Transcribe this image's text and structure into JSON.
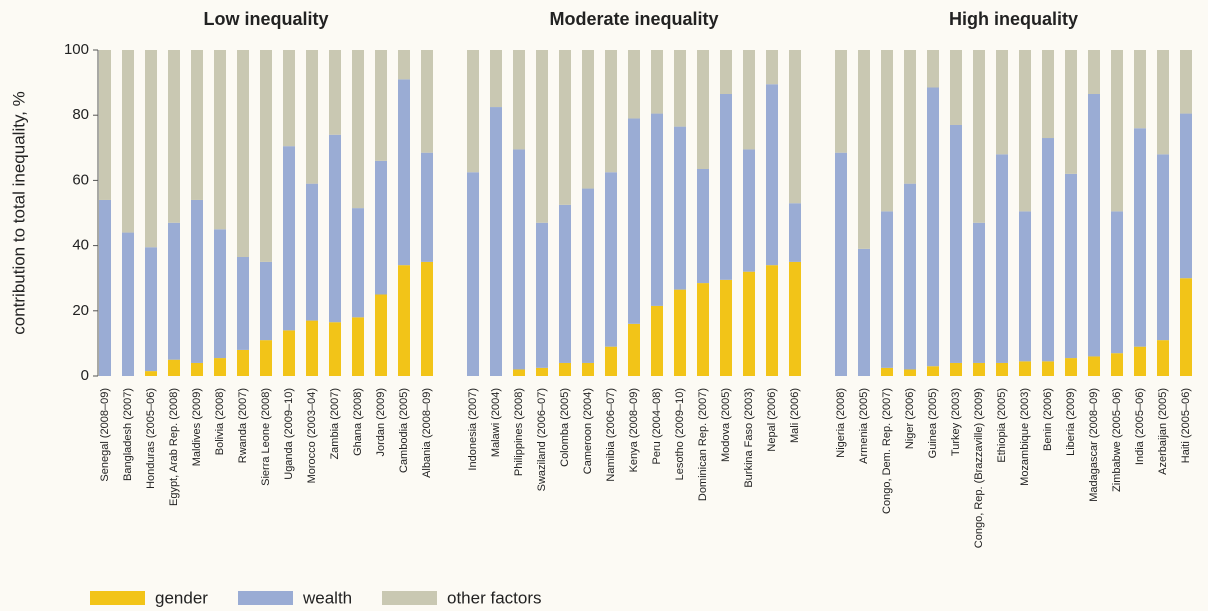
{
  "chart_data": {
    "type": "stacked_bar",
    "ylabel": "contribution to total inequality, %",
    "ylim": [
      0,
      100
    ],
    "yticks": [
      0,
      20,
      40,
      60,
      80,
      100
    ],
    "legend": [
      {
        "name": "gender",
        "color": "#f2c418"
      },
      {
        "name": "wealth",
        "color": "#9aacd4"
      },
      {
        "name": "other factors",
        "color": "#c9c8b2"
      }
    ],
    "groups": [
      {
        "title": "Low inequality",
        "categories": [
          "Senegal (2008–09)",
          "Bangladesh (2007)",
          "Honduras (2005–06)",
          "Egypt, Arab Rep. (2008)",
          "Maldives (2009)",
          "Bolivia (2008)",
          "Rwanda (2007)",
          "Sierra Leone (2008)",
          "Uganda (2009–10)",
          "Morocco (2003–04)",
          "Zambia (2007)",
          "Ghana (2008)",
          "Jordan (2009)",
          "Cambodia (2005)",
          "Albania (2008–09)"
        ],
        "series": [
          {
            "values": [
              0,
              0,
              1.5,
              5,
              4,
              5.5,
              8,
              11,
              14,
              17,
              16.5,
              18,
              25,
              34,
              35
            ]
          },
          {
            "values": [
              54,
              44,
              38,
              42,
              50,
              39.5,
              28.5,
              24,
              56.5,
              42,
              57.5,
              33.5,
              41,
              57,
              33.5
            ]
          },
          {
            "values": [
              46,
              56,
              60.5,
              53,
              46,
              55,
              63.5,
              65,
              29.5,
              41,
              26,
              48.5,
              34,
              9,
              31.5
            ]
          }
        ]
      },
      {
        "title": "Moderate inequality",
        "categories": [
          "Indonesia (2007)",
          "Malawi (2004)",
          "Philippines (2008)",
          "Swaziland (2006–07)",
          "Colomba (2005)",
          "Cameroon (2004)",
          "Namibia (2006–07)",
          "Kenya (2008–09)",
          "Peru (2004–08)",
          "Lesotho (2009–10)",
          "Dominican Rep. (2007)",
          "Modova (2005)",
          "Burkina Faso (2003)",
          "Nepal (2006)",
          "Mali (2006)"
        ],
        "series": [
          {
            "values": [
              0,
              0,
              2,
              2.5,
              4,
              4,
              9,
              16,
              21.5,
              26.5,
              28.5,
              29.5,
              32,
              34,
              35
            ]
          },
          {
            "values": [
              62.5,
              82.5,
              67.5,
              44.5,
              48.5,
              53.5,
              53.5,
              63,
              59,
              50,
              35,
              57,
              37.5,
              55.5,
              18
            ]
          },
          {
            "values": [
              37.5,
              17.5,
              30.5,
              53,
              47.5,
              42.5,
              37.5,
              21,
              19.5,
              23.5,
              36.5,
              13.5,
              30.5,
              10.5,
              47
            ]
          }
        ]
      },
      {
        "title": "High inequality",
        "categories": [
          "Nigeria (2008)",
          "Armenia (2005)",
          "Congo, Dem. Rep. (2007)",
          "Niger (2006)",
          "Guinea (2005)",
          "Turkey (2003)",
          "Congo, Rep. (Brazzaville) (2009)",
          "Ethiopia (2005)",
          "Mozambique (2003)",
          "Benin (2006)",
          "Liberia (2009)",
          "Madagascar (2008–09)",
          "Zimbabwe (2005–06)",
          "India (2005–06)",
          "Azerbaijan (2005)",
          "Haiti (2005–06)"
        ],
        "series": [
          {
            "values": [
              0,
              0,
              2.5,
              2,
              3,
              4,
              4,
              4,
              4.5,
              4.5,
              5.5,
              6,
              7,
              9,
              11,
              30
            ]
          },
          {
            "values": [
              68.5,
              39,
              48,
              57,
              85.5,
              73,
              43,
              64,
              46,
              68.5,
              56.5,
              80.5,
              43.5,
              67,
              57,
              50.5
            ]
          },
          {
            "values": [
              31.5,
              61,
              49.5,
              41,
              11.5,
              23,
              53,
              32,
              49.5,
              27,
              38,
              13.5,
              49.5,
              24,
              32,
              19.5
            ]
          }
        ]
      }
    ]
  }
}
